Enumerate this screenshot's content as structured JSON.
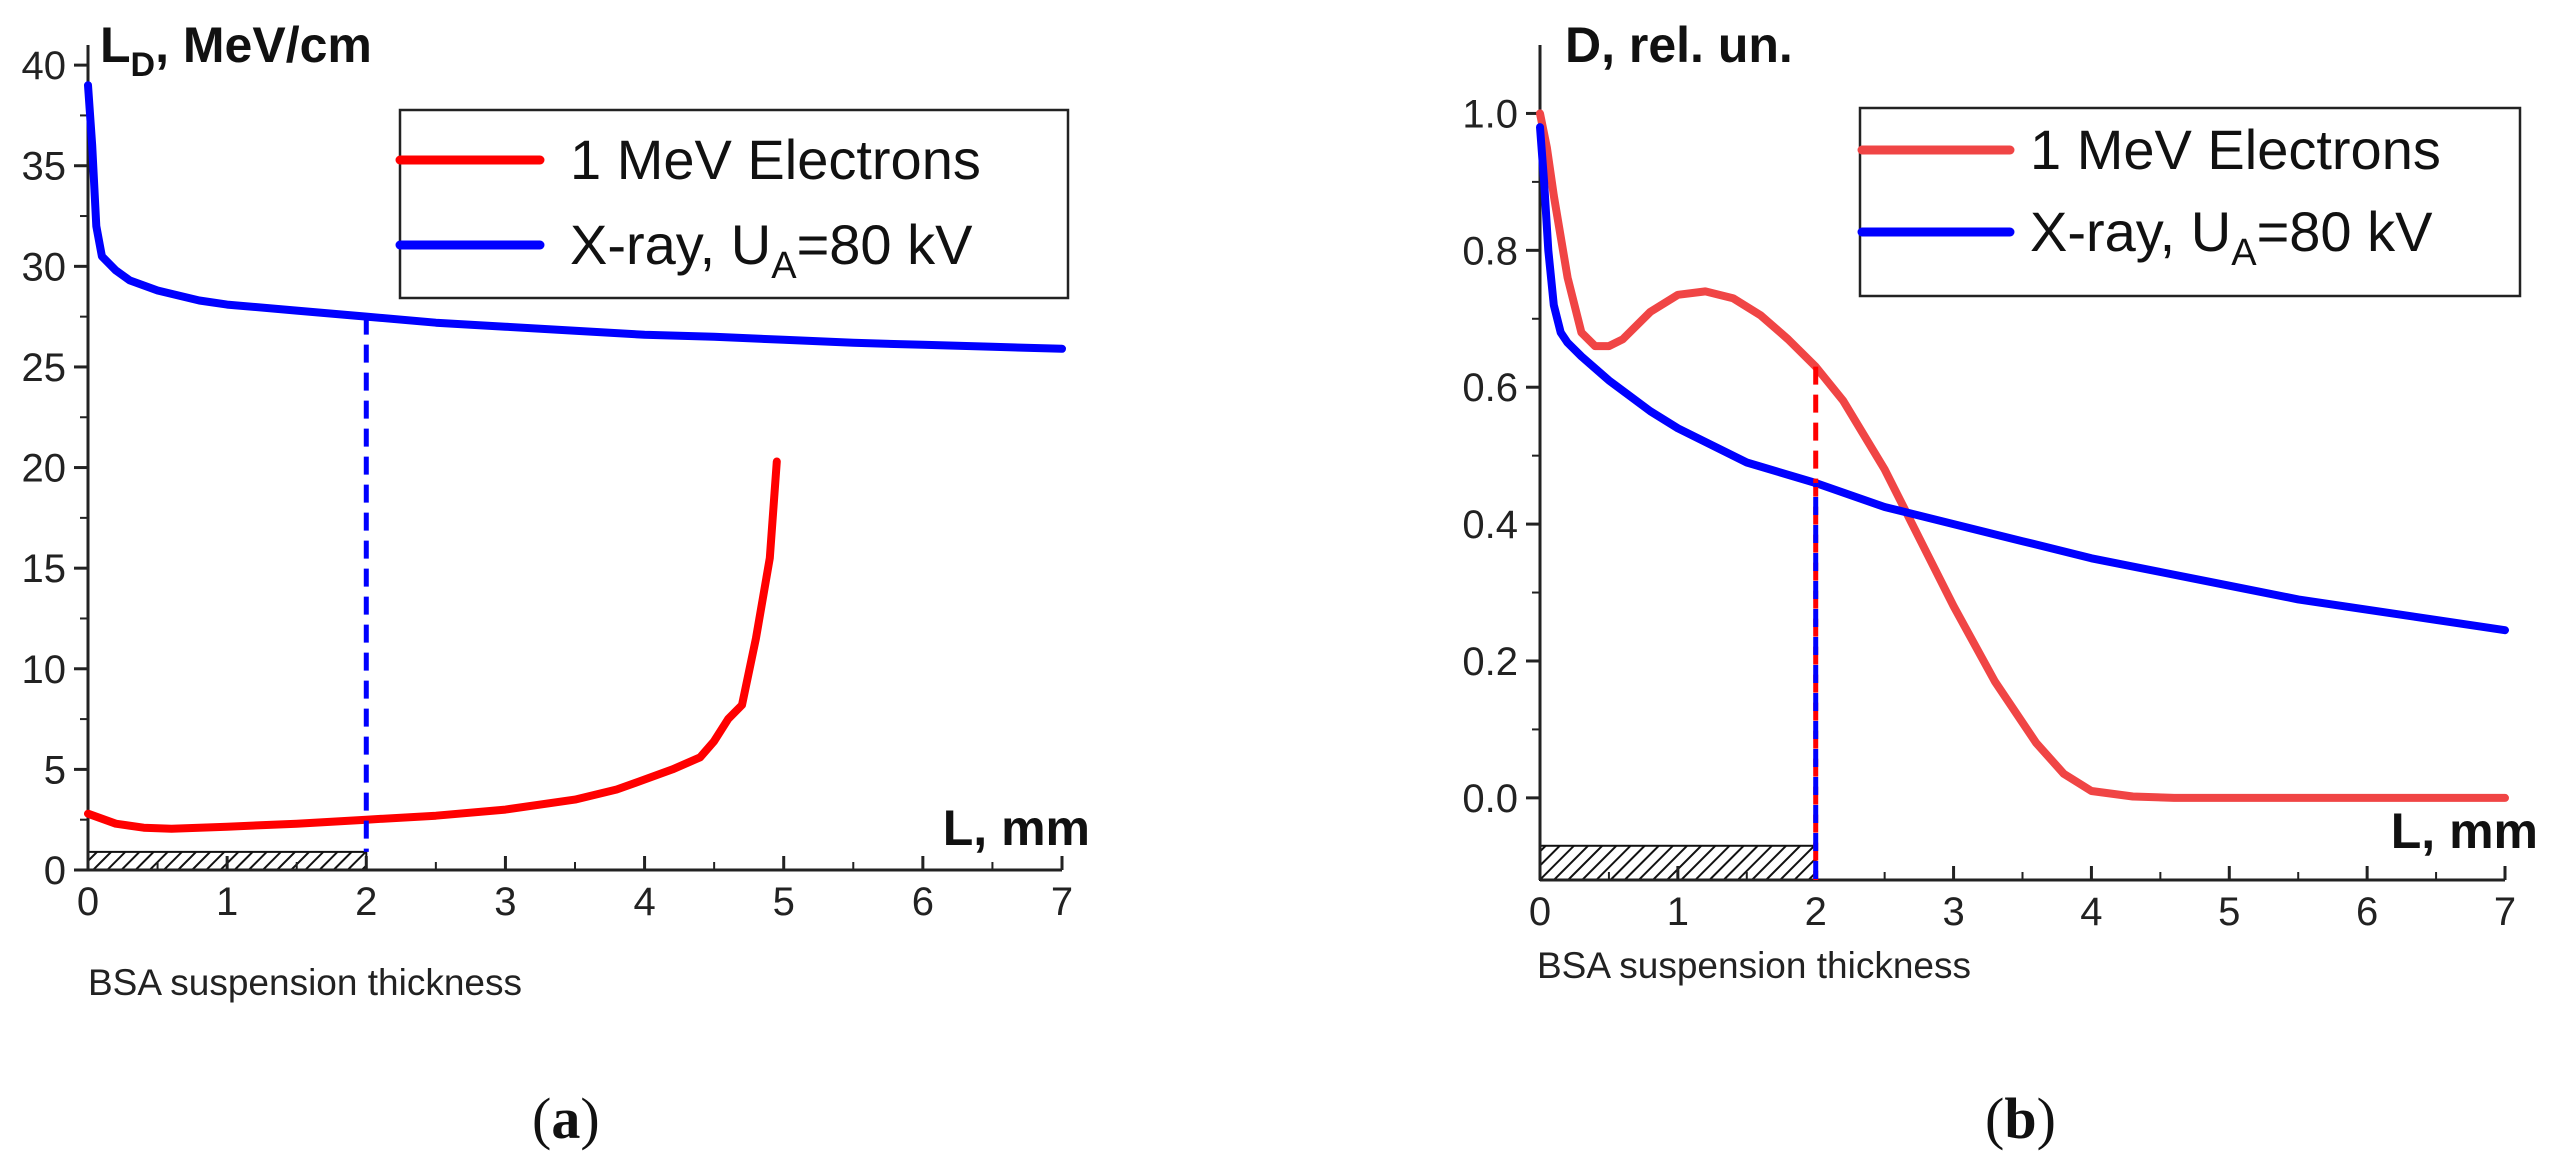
{
  "colors": {
    "electrons": "#ff0000",
    "electrons_b": "#f04545",
    "xray": "#0000ff",
    "axis": "#222222"
  },
  "chart_data": [
    {
      "id": "a",
      "type": "line",
      "panel_label": "a",
      "ylabel_main": "L",
      "ylabel_sub": "D",
      "ylabel_rest": ", MeV/cm",
      "xlabel": "L, mm",
      "xlim": [
        0,
        7
      ],
      "ylim": [
        0,
        41
      ],
      "xticks": [
        0,
        1,
        2,
        3,
        4,
        5,
        6,
        7
      ],
      "yticks": [
        0,
        5,
        10,
        15,
        20,
        25,
        30,
        35,
        40
      ],
      "thickness_label": "BSA suspension thickness",
      "thickness": 2,
      "marker_x": 2,
      "legend": [
        {
          "main": "1 MeV Electrons",
          "sub": "",
          "rest": ""
        },
        {
          "main": "X-ray, U",
          "sub": "A",
          "rest": "=80 kV"
        }
      ],
      "series": [
        {
          "name": "1 MeV Electrons",
          "x": [
            0,
            0.2,
            0.4,
            0.6,
            0.8,
            1.0,
            1.5,
            2.0,
            2.5,
            3.0,
            3.5,
            3.8,
            4.0,
            4.2,
            4.4,
            4.5,
            4.6,
            4.7,
            4.8,
            4.9,
            4.95
          ],
          "y": [
            2.8,
            2.3,
            2.1,
            2.05,
            2.1,
            2.15,
            2.3,
            2.5,
            2.7,
            3.0,
            3.5,
            4.0,
            4.5,
            5.0,
            5.6,
            6.4,
            7.5,
            8.2,
            11.5,
            15.5,
            20.3
          ]
        },
        {
          "name": "X-ray, UA=80 kV",
          "x": [
            0,
            0.03,
            0.06,
            0.1,
            0.2,
            0.3,
            0.5,
            0.8,
            1.0,
            1.5,
            2.0,
            2.5,
            3.0,
            3.5,
            4.0,
            4.5,
            5.0,
            5.5,
            6.0,
            6.5,
            7.0
          ],
          "y": [
            39,
            36,
            32,
            30.5,
            29.8,
            29.3,
            28.8,
            28.3,
            28.1,
            27.8,
            27.5,
            27.2,
            27.0,
            26.8,
            26.6,
            26.5,
            26.35,
            26.2,
            26.1,
            26.0,
            25.9
          ]
        }
      ]
    },
    {
      "id": "b",
      "type": "line",
      "panel_label": "b",
      "ylabel_main": "D, rel. un.",
      "ylabel_sub": "",
      "ylabel_rest": "",
      "xlabel": "L, mm",
      "xlim": [
        0,
        7
      ],
      "ylim": [
        -0.12,
        1.1
      ],
      "xticks": [
        0,
        1,
        2,
        3,
        4,
        5,
        6,
        7
      ],
      "yticks": [
        0.0,
        0.2,
        0.4,
        0.6,
        0.8,
        1.0
      ],
      "thickness_label": "BSA suspension thickness",
      "thickness": 2,
      "marker_x": 2,
      "legend": [
        {
          "main": "1 MeV Electrons",
          "sub": "",
          "rest": ""
        },
        {
          "main": "X-ray, U",
          "sub": "A",
          "rest": "=80 kV"
        }
      ],
      "series": [
        {
          "name": "1 MeV Electrons",
          "x": [
            0,
            0.05,
            0.1,
            0.2,
            0.3,
            0.4,
            0.5,
            0.6,
            0.8,
            1.0,
            1.2,
            1.4,
            1.6,
            1.8,
            2.0,
            2.2,
            2.5,
            2.8,
            3.0,
            3.3,
            3.6,
            3.8,
            4.0,
            4.3,
            4.6,
            5.0,
            6.0,
            7.0
          ],
          "y": [
            1.0,
            0.95,
            0.88,
            0.76,
            0.68,
            0.66,
            0.66,
            0.67,
            0.71,
            0.735,
            0.74,
            0.73,
            0.705,
            0.67,
            0.63,
            0.58,
            0.48,
            0.36,
            0.28,
            0.17,
            0.08,
            0.035,
            0.01,
            0.002,
            0,
            0,
            0,
            0
          ]
        },
        {
          "name": "X-ray, UA=80 kV",
          "x": [
            0,
            0.03,
            0.06,
            0.1,
            0.15,
            0.2,
            0.3,
            0.5,
            0.8,
            1.0,
            1.5,
            2.0,
            2.5,
            3.0,
            3.5,
            4.0,
            4.5,
            5.0,
            5.5,
            6.0,
            6.5,
            7.0
          ],
          "y": [
            0.98,
            0.9,
            0.8,
            0.72,
            0.68,
            0.665,
            0.645,
            0.61,
            0.565,
            0.54,
            0.49,
            0.46,
            0.425,
            0.4,
            0.375,
            0.35,
            0.33,
            0.31,
            0.29,
            0.275,
            0.26,
            0.245
          ]
        }
      ]
    }
  ]
}
